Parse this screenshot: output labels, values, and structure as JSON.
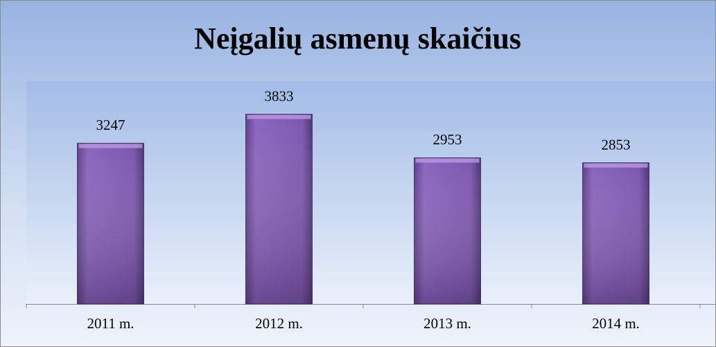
{
  "chart_data": {
    "type": "bar",
    "title": "Neįgalių asmenų skaičius",
    "categories": [
      "2011 m.",
      "2012 m.",
      "2013 m.",
      "2014 m."
    ],
    "values": [
      3247,
      3833,
      2953,
      2853
    ],
    "color": "#7a55aa",
    "ylim": [
      0,
      4500
    ]
  }
}
